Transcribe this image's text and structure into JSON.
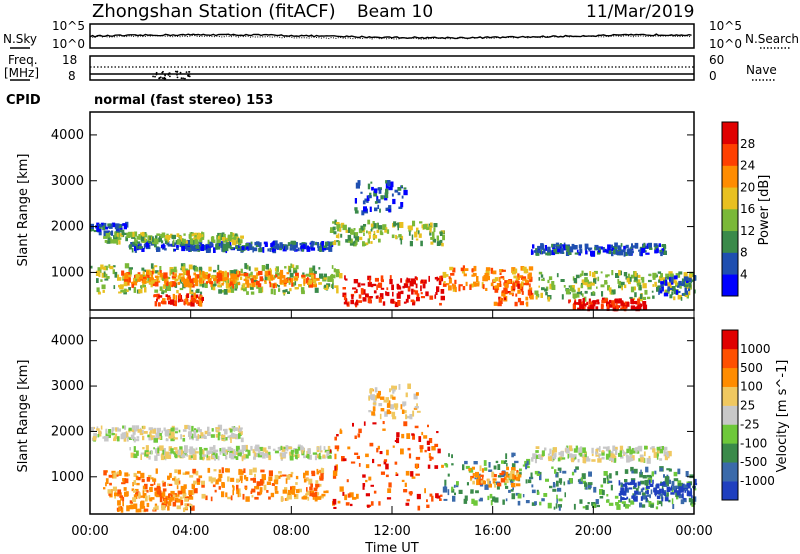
{
  "header": {
    "station": "Zhongshan Station (fitACF)",
    "beam": "Beam 10",
    "date": "11/Mar/2019"
  },
  "noise_panel": {
    "left_label": "N.Sky",
    "right_label": "N.Search",
    "left_ticks": [
      "10^5",
      "10^0"
    ],
    "right_ticks": [
      "10^5",
      "10^0"
    ]
  },
  "freq_panel": {
    "left_label_1": "Freq.",
    "left_label_2": "[MHz]",
    "right_label": "Nave",
    "left_ticks": [
      "18",
      "8"
    ],
    "right_ticks": [
      "60",
      "0"
    ]
  },
  "cpid": {
    "label": "CPID",
    "value": "normal (fast stereo) 153"
  },
  "x_axis": {
    "label": "Time UT",
    "ticks": [
      "00:00",
      "04:00",
      "08:00",
      "12:00",
      "16:00",
      "20:00",
      "00:00"
    ]
  },
  "chart_data": [
    {
      "type": "heatmap",
      "panel": "power",
      "ylabel": "Slant Range [km]",
      "y_ticks": [
        1000,
        2000,
        3000,
        4000
      ],
      "ylim": [
        180,
        4500
      ],
      "xlim_hours": [
        0,
        24
      ],
      "colorbar": {
        "label": "Power [dB]",
        "ticks": [
          4,
          8,
          12,
          16,
          20,
          24,
          28
        ],
        "colors": [
          "#0000ff",
          "#1f4fb0",
          "#3a8a4a",
          "#7ab838",
          "#e8c020",
          "#ff8c00",
          "#ff4000",
          "#e00000"
        ]
      },
      "bands": [
        {
          "t0": 0.0,
          "t1": 1.5,
          "r0": 1850,
          "r1": 2050,
          "level": 1
        },
        {
          "t0": 1.5,
          "t1": 9.6,
          "r0": 1480,
          "r1": 1650,
          "level": 1
        },
        {
          "t0": 0.5,
          "t1": 6.0,
          "r0": 1650,
          "r1": 1850,
          "level": 3
        },
        {
          "t0": 0.0,
          "t1": 10.0,
          "r0": 550,
          "r1": 1150,
          "level": 3
        },
        {
          "t0": 1.0,
          "t1": 9.0,
          "r0": 700,
          "r1": 1000,
          "level": 5
        },
        {
          "t0": 2.5,
          "t1": 4.5,
          "r0": 300,
          "r1": 500,
          "level": 6
        },
        {
          "t0": 9.5,
          "t1": 14.0,
          "r0": 1600,
          "r1": 2100,
          "level": 3
        },
        {
          "t0": 10.5,
          "t1": 12.5,
          "r0": 2300,
          "r1": 3000,
          "level": 1
        },
        {
          "t0": 10.0,
          "t1": 14.0,
          "r0": 300,
          "r1": 900,
          "level": 7
        },
        {
          "t0": 14.0,
          "t1": 17.5,
          "r0": 600,
          "r1": 1100,
          "level": 5
        },
        {
          "t0": 16.0,
          "t1": 17.5,
          "r0": 300,
          "r1": 800,
          "level": 6
        },
        {
          "t0": 17.5,
          "t1": 23.0,
          "r0": 1400,
          "r1": 1600,
          "level": 1
        },
        {
          "t0": 17.5,
          "t1": 24.0,
          "r0": 400,
          "r1": 1000,
          "level": 3
        },
        {
          "t0": 19.0,
          "t1": 22.0,
          "r0": 200,
          "r1": 400,
          "level": 7
        },
        {
          "t0": 22.5,
          "t1": 24.0,
          "r0": 500,
          "r1": 900,
          "level": 1
        }
      ]
    },
    {
      "type": "heatmap",
      "panel": "velocity",
      "ylabel": "Slant Range [km]",
      "y_ticks": [
        1000,
        2000,
        3000,
        4000
      ],
      "ylim": [
        180,
        4500
      ],
      "xlim_hours": [
        0,
        24
      ],
      "colorbar": {
        "label": "Velocity [m s^-1]",
        "ticks": [
          1000,
          500,
          100,
          25,
          -25,
          -100,
          -500,
          -1000
        ],
        "colors": [
          "#1f3fbf",
          "#3a6aaa",
          "#3a8a4a",
          "#6ec83a",
          "#c8c8c8",
          "#f0c860",
          "#ff8c00",
          "#ff5000",
          "#e00000"
        ]
      },
      "bands": [
        {
          "t0": 0.0,
          "t1": 6.0,
          "r0": 1800,
          "r1": 2100,
          "level": 4
        },
        {
          "t0": 1.5,
          "t1": 9.5,
          "r0": 1400,
          "r1": 1650,
          "level": 4
        },
        {
          "t0": 0.5,
          "t1": 9.5,
          "r0": 500,
          "r1": 1150,
          "level": 6
        },
        {
          "t0": 1.0,
          "t1": 4.0,
          "r0": 250,
          "r1": 700,
          "level": 6
        },
        {
          "t0": 9.5,
          "t1": 14.0,
          "r0": 300,
          "r1": 2200,
          "level": 7
        },
        {
          "t0": 11.0,
          "t1": 13.0,
          "r0": 2300,
          "r1": 3000,
          "level": 5
        },
        {
          "t0": 14.0,
          "t1": 17.5,
          "r0": 400,
          "r1": 1500,
          "level": 2
        },
        {
          "t0": 15.0,
          "t1": 17.0,
          "r0": 800,
          "r1": 1200,
          "level": 6
        },
        {
          "t0": 17.5,
          "t1": 23.0,
          "r0": 1350,
          "r1": 1650,
          "level": 4
        },
        {
          "t0": 17.5,
          "t1": 24.0,
          "r0": 300,
          "r1": 1200,
          "level": 2
        },
        {
          "t0": 21.0,
          "t1": 24.0,
          "r0": 500,
          "r1": 900,
          "level": 0
        }
      ]
    }
  ]
}
